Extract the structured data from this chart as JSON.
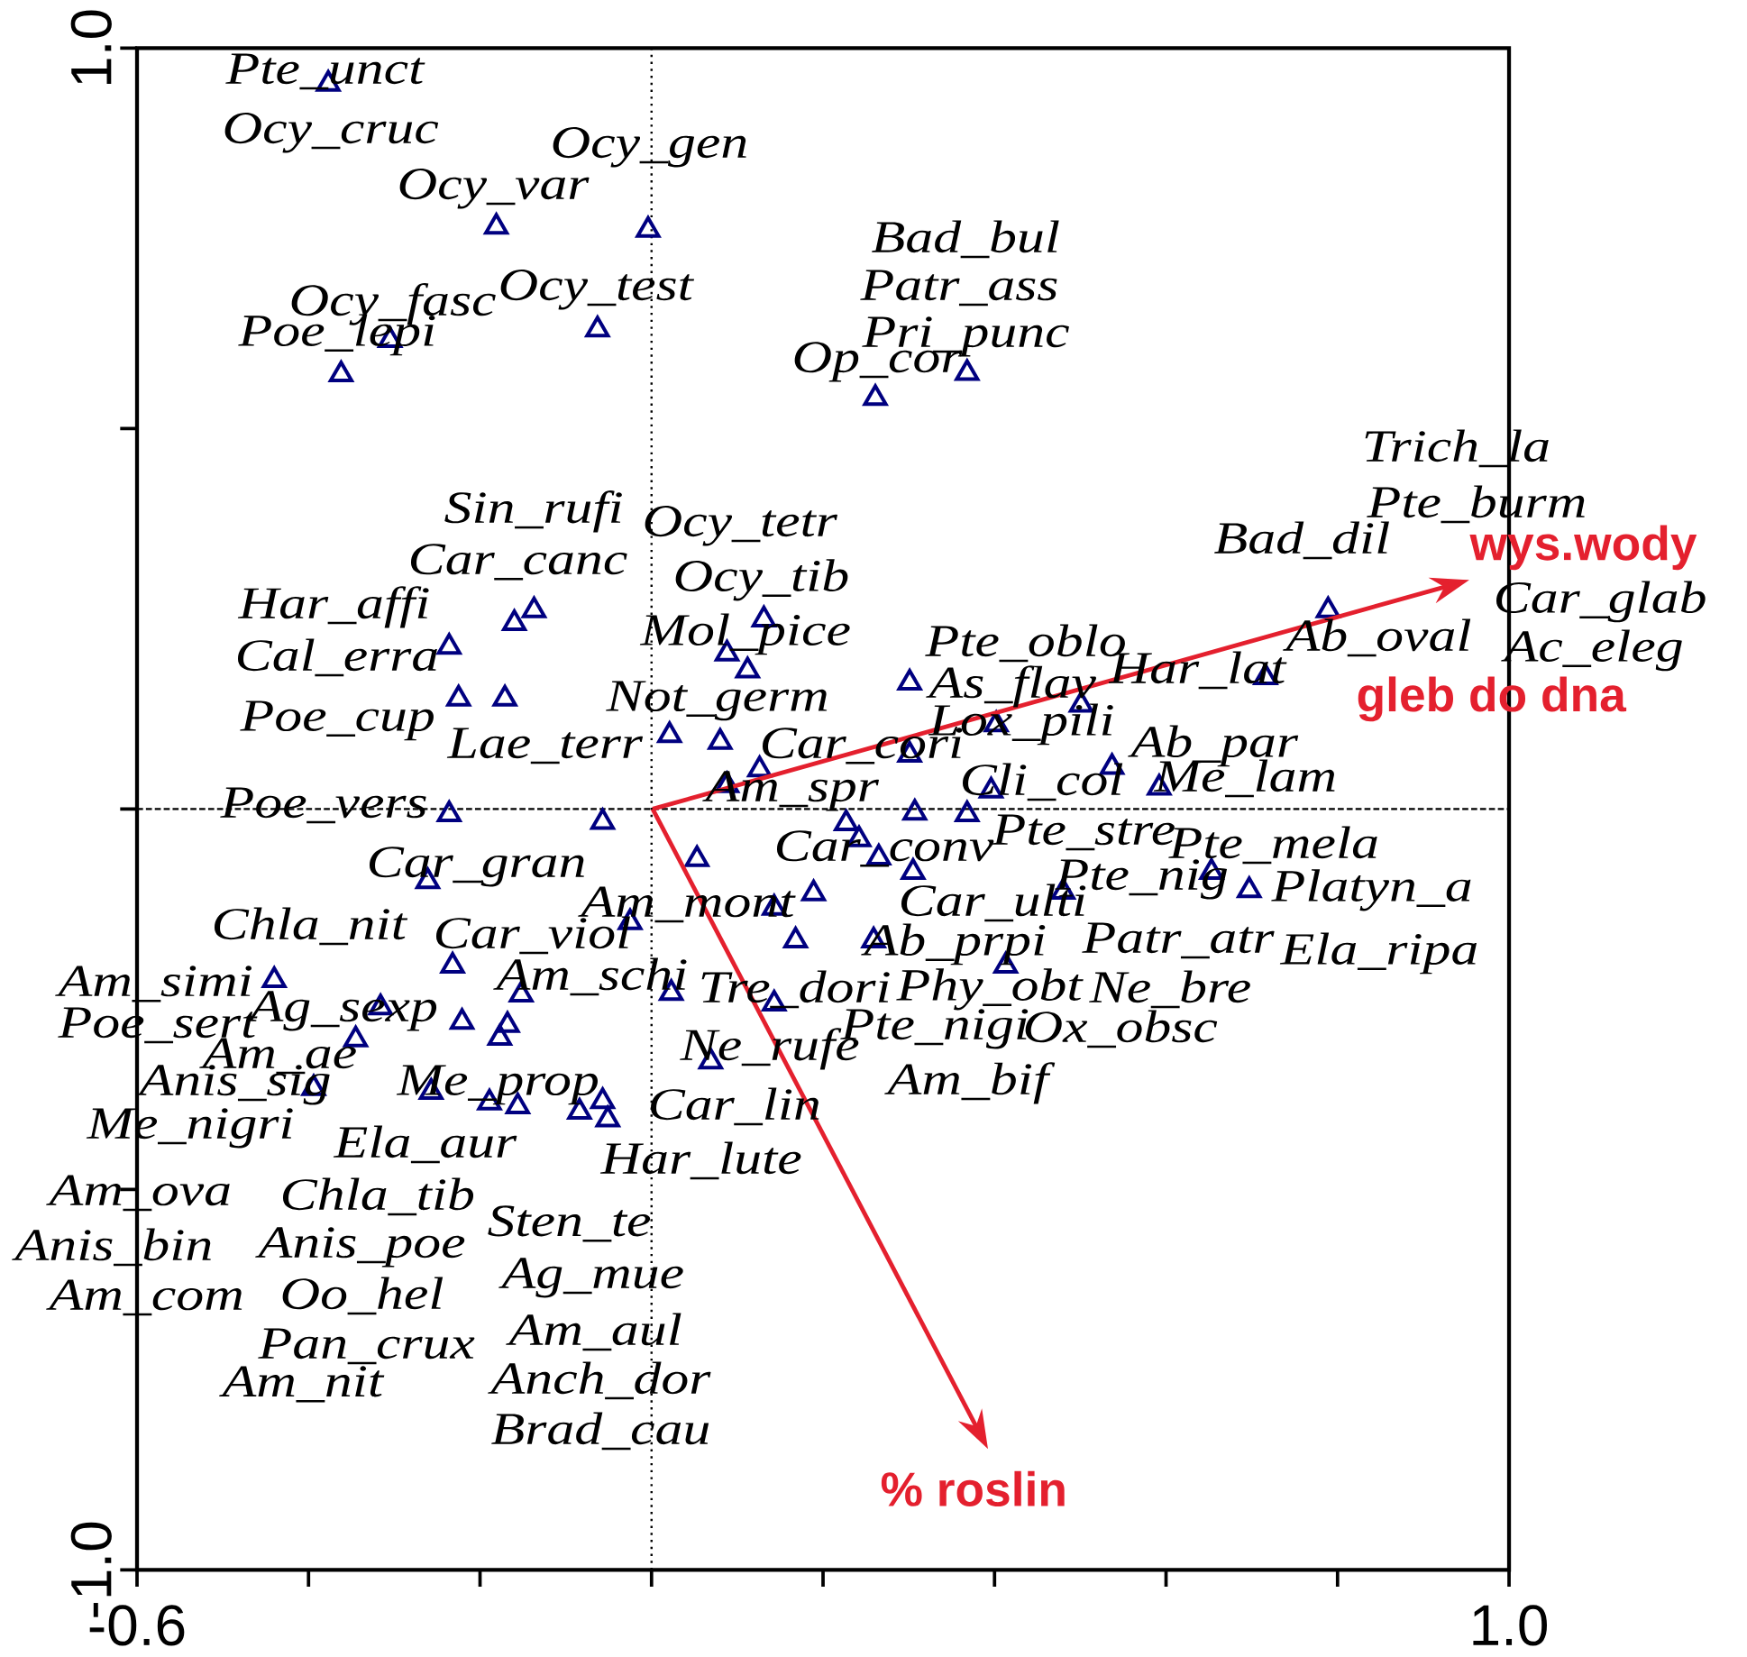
{
  "chart_data": {
    "type": "scatter",
    "xlim": [
      -0.6,
      1.0
    ],
    "ylim": [
      -1.0,
      1.0
    ],
    "xticks": [
      {
        "value": -0.6,
        "label": "-0.6"
      },
      {
        "value": -0.4,
        "label": null
      },
      {
        "value": -0.2,
        "label": null
      },
      {
        "value": 0,
        "label": null
      },
      {
        "value": 0.2,
        "label": null
      },
      {
        "value": 0.4,
        "label": null
      },
      {
        "value": 0.6,
        "label": null
      },
      {
        "value": 0.8,
        "label": null
      },
      {
        "value": 1.0,
        "label": "1.0"
      }
    ],
    "yticks": [
      {
        "value": -1.0,
        "label": "-1.0"
      },
      {
        "value": -0.5,
        "label": null
      },
      {
        "value": 0,
        "label": null
      },
      {
        "value": 0.5,
        "label": null
      },
      {
        "value": 1.0,
        "label": "1.0"
      }
    ],
    "marker": "triangle",
    "ref_lines": [
      {
        "axis": "x",
        "value": 0,
        "line_style": "dotted"
      },
      {
        "axis": "y",
        "value": 0,
        "line_style": "dashed"
      }
    ],
    "series": [
      {
        "color": "#000080",
        "x": [
          -0.377,
          -0.181,
          -0.004,
          -0.063,
          -0.305,
          -0.362,
          0.261,
          0.368,
          -0.137,
          -0.16,
          -0.236,
          -0.225,
          -0.171,
          0.131,
          0.088,
          0.112,
          0.021,
          0.08,
          0.088,
          0.126,
          0.301,
          0.301,
          0.402,
          0.501,
          0.537,
          0.592,
          0.396,
          0.789,
          0.716,
          0.653,
          0.697,
          -0.057,
          -0.236,
          0.307,
          0.368,
          0.227,
          0.242,
          0.265,
          0.053,
          0.305,
          0.48,
          0.189,
          0.143,
          0.168,
          0.259,
          0.413,
          0.023,
          0.143,
          0.069,
          -0.025,
          -0.261,
          -0.232,
          -0.44,
          -0.316,
          -0.221,
          -0.152,
          -0.168,
          -0.177,
          -0.345,
          -0.394,
          -0.257,
          -0.189,
          -0.156,
          -0.084,
          -0.057,
          -0.051
        ],
        "values": [
          0.953,
          0.765,
          0.761,
          0.63,
          0.616,
          0.571,
          0.54,
          0.573,
          0.261,
          0.244,
          0.213,
          0.145,
          0.145,
          0.249,
          0.204,
          0.182,
          0.097,
          0.088,
          0.031,
          0.052,
          0.166,
          0.071,
          0.111,
          0.137,
          0.055,
          0.028,
          0.024,
          0.261,
          0.173,
          -0.083,
          -0.107,
          -0.017,
          -0.007,
          -0.005,
          -0.007,
          -0.019,
          -0.04,
          -0.064,
          -0.066,
          -0.083,
          -0.109,
          -0.111,
          -0.13,
          -0.173,
          -0.173,
          -0.206,
          -0.242,
          -0.256,
          -0.332,
          -0.149,
          -0.095,
          -0.206,
          -0.225,
          -0.261,
          -0.28,
          -0.244,
          -0.284,
          -0.301,
          -0.303,
          -0.367,
          -0.372,
          -0.386,
          -0.391,
          -0.398,
          -0.384,
          -0.408
        ]
      }
    ],
    "annotations": [
      "Pte_unct",
      "Ocy_cruc",
      "Ocy_gen",
      "Ocy_var",
      "Bad_bul",
      "Ocy_fasc",
      "Ocy_test",
      "Patr_ass",
      "Poe_lepi",
      "Pri_punc",
      "Op_cor",
      "Trich_la",
      "Pte_burm",
      "Bad_dil",
      "Sin_rufi",
      "Car_canc",
      "Ocy_tetr",
      "Ocy_tib",
      "Car_glab",
      "Har_affi",
      "Mol_pice",
      "Ac_eleg",
      "Ab_oval",
      "Cal_erra",
      "Pte_oblo",
      "Har_lat",
      "As_flav",
      "Not_germ",
      "Poe_cup",
      "Lox_pili",
      "Ab_par",
      "Lae_terr",
      "Car_cori",
      "Cli_col",
      "Me_lam",
      "Am_spr",
      "Poe_vers",
      "Pte_stre",
      "Car_conv",
      "Pte_mela",
      "Car_gran",
      "Pte_nig",
      "Platyn_a",
      "Am_mont",
      "Car_ulti",
      "Chla_nit",
      "Car_viol",
      "Patr_atr",
      "Ela_ripa",
      "Ab_prpi",
      "Am_schi",
      "Am_simi",
      "Tre_dori",
      "Phy_obt",
      "Ne_bre",
      "Ag_sexp",
      "Poe_sert",
      "Pte_nigi",
      "Ox_obsc",
      "Am_ae",
      "Ne_rufe",
      "Anis_sig",
      "Me_prop",
      "Am_bif",
      "Car_lin",
      "Me_nigri",
      "Ela_aur",
      "Har_lute",
      "Am_ova",
      "Chla_tib",
      "Sten_te",
      "Anis_bin",
      "Anis_poe",
      "Ag_mue",
      "Am_com",
      "Oo_hel",
      "Pan_crux",
      "Am_aul",
      "Am_nit",
      "Anch_dor",
      "Brad_cau",
      "wys.wody",
      "gleb do dna",
      "% roslin"
    ]
  }
}
